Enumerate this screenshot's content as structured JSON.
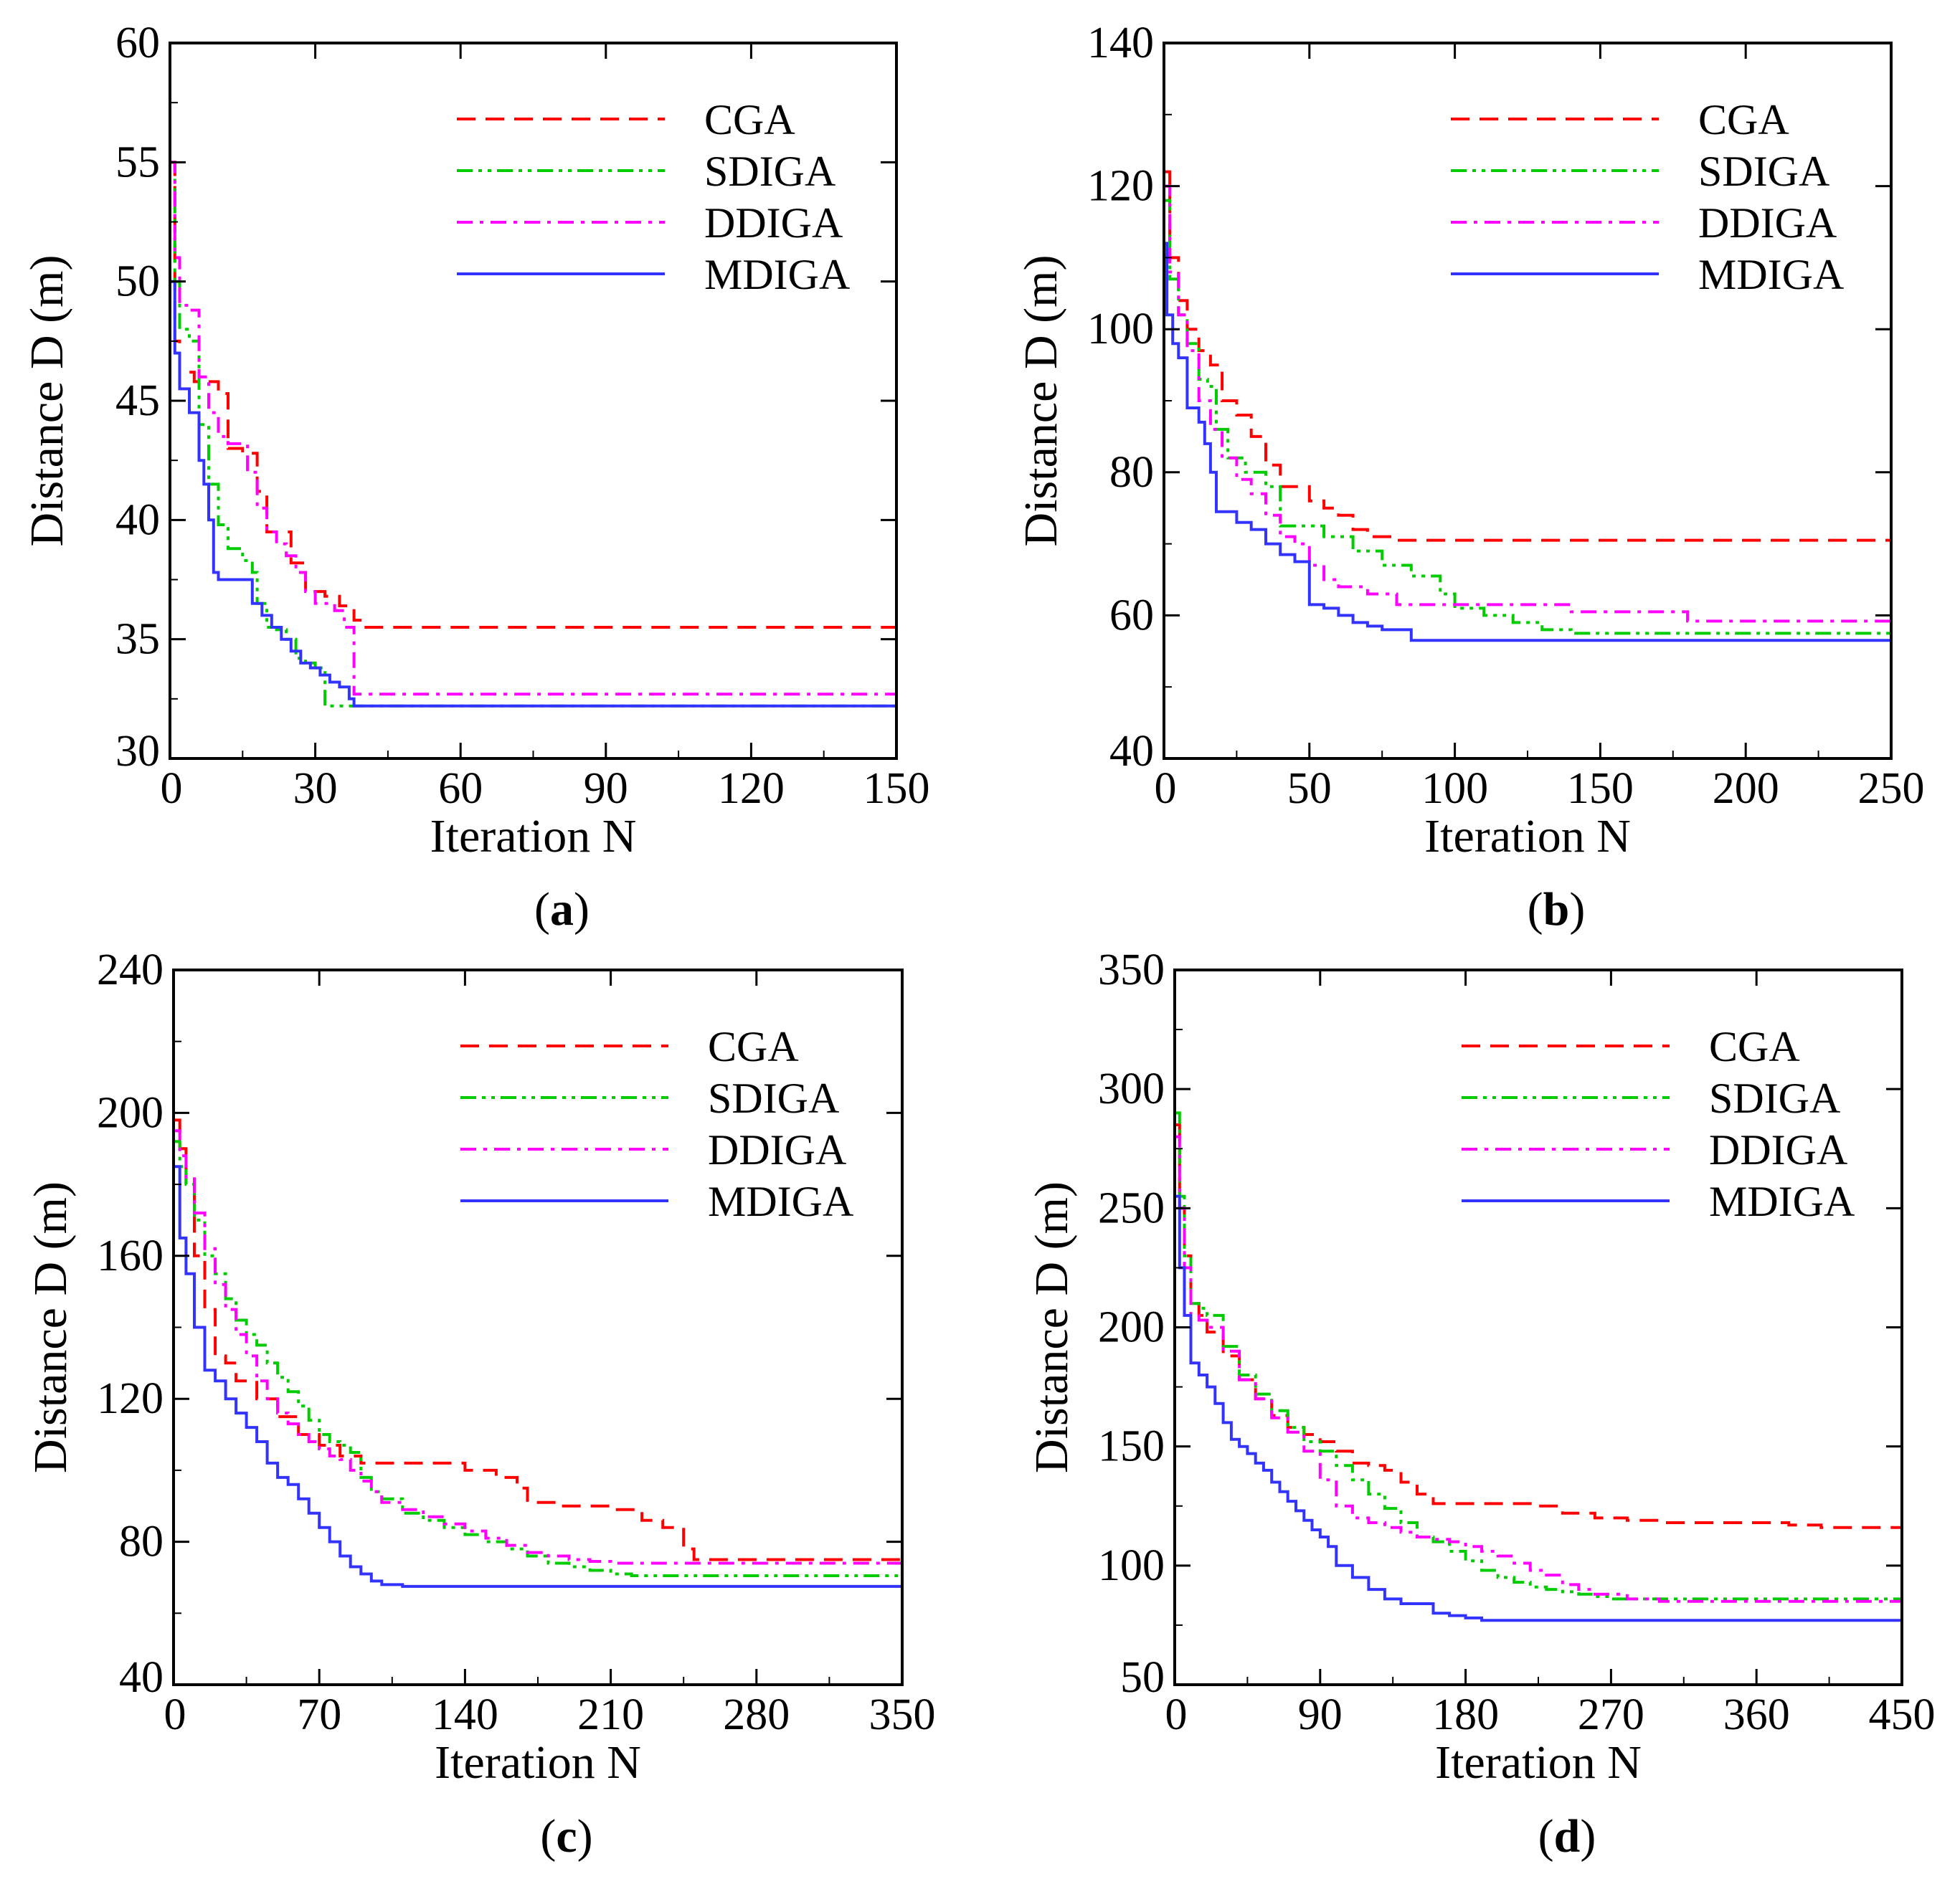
{
  "colors": {
    "CGA": "#ff0000",
    "SDIGA": "#00cc00",
    "DDIGA": "#ff00ff",
    "MDIGA": "#3333ff"
  },
  "chart_data": [
    {
      "id": "a",
      "type": "line",
      "panel_label": "a",
      "xlabel": "Iteration N",
      "ylabel": "Distance D (m)",
      "xlim": [
        0,
        150
      ],
      "ylim": [
        30,
        60
      ],
      "xticks": [
        0,
        30,
        60,
        90,
        120,
        150
      ],
      "yticks": [
        30,
        35,
        40,
        45,
        50,
        55,
        60
      ],
      "legend_position": "top-right",
      "series": [
        {
          "name": "CGA",
          "style": "dashed",
          "step": true,
          "x": [
            0,
            1,
            2,
            5,
            10,
            12,
            15,
            18,
            20,
            25,
            28,
            32,
            35,
            38,
            40,
            150
          ],
          "y": [
            55,
            47.5,
            46.2,
            45.8,
            45.3,
            43,
            42.8,
            41.2,
            39.5,
            38.2,
            37,
            36.8,
            36.4,
            35.8,
            35.5,
            35.5
          ]
        },
        {
          "name": "SDIGA",
          "style": "dashdotdot",
          "step": true,
          "x": [
            0,
            1,
            2,
            4,
            6,
            8,
            10,
            12,
            15,
            17,
            18,
            20,
            22,
            24,
            26,
            28,
            30,
            32,
            34,
            36,
            38,
            150
          ],
          "y": [
            55,
            50,
            48,
            47.5,
            44,
            41.5,
            39.8,
            38.8,
            38.3,
            37.8,
            36.5,
            35.5,
            35.4,
            35,
            34.2,
            34,
            33.8,
            32.2,
            32.2,
            32.2,
            32.2,
            32.2
          ]
        },
        {
          "name": "DDIGA",
          "style": "dashdot",
          "step": true,
          "x": [
            0,
            1,
            2,
            4,
            6,
            8,
            10,
            12,
            16,
            18,
            20,
            22,
            24,
            26,
            28,
            30,
            34,
            36,
            38,
            150
          ],
          "y": [
            55,
            51,
            49,
            48.8,
            46,
            44.5,
            43.5,
            43.2,
            42,
            40.5,
            39.5,
            39,
            38.5,
            37.8,
            37,
            36.5,
            36.2,
            35.5,
            32.7,
            32.7
          ]
        },
        {
          "name": "MDIGA",
          "style": "solid",
          "step": true,
          "x": [
            0,
            1,
            2,
            4,
            6,
            7,
            8,
            9,
            10,
            15,
            17,
            19,
            21,
            23,
            25,
            27,
            29,
            31,
            33,
            35,
            37,
            38,
            150
          ],
          "y": [
            50,
            47,
            45.5,
            44.5,
            42.5,
            41.5,
            40,
            37.8,
            37.5,
            37.5,
            36.5,
            36,
            35.5,
            35,
            34.5,
            34,
            33.8,
            33.5,
            33.2,
            33,
            32.5,
            32.2,
            32.2
          ]
        }
      ]
    },
    {
      "id": "b",
      "type": "line",
      "panel_label": "b",
      "xlabel": "Iteration N",
      "ylabel": "Distance D (m)",
      "xlim": [
        0,
        250
      ],
      "ylim": [
        40,
        140
      ],
      "xticks": [
        0,
        50,
        100,
        150,
        200,
        250
      ],
      "yticks": [
        40,
        60,
        80,
        100,
        120,
        140
      ],
      "legend_position": "top-right",
      "series": [
        {
          "name": "CGA",
          "style": "dashed",
          "step": true,
          "x": [
            0,
            2,
            5,
            8,
            12,
            16,
            20,
            25,
            30,
            35,
            40,
            50,
            55,
            60,
            65,
            70,
            80,
            250
          ],
          "y": [
            122,
            110,
            104,
            100,
            97,
            95,
            90,
            88,
            85,
            81,
            78,
            76,
            75,
            74,
            72,
            71,
            70.5,
            70.5
          ]
        },
        {
          "name": "SDIGA",
          "style": "dashdotdot",
          "step": true,
          "x": [
            0,
            2,
            5,
            8,
            12,
            15,
            18,
            22,
            28,
            35,
            40,
            55,
            65,
            75,
            85,
            95,
            100,
            110,
            120,
            130,
            140,
            250
          ],
          "y": [
            118,
            107,
            102,
            98,
            93,
            92,
            86,
            82,
            80,
            78,
            72.5,
            71,
            69,
            67,
            65.5,
            63,
            61,
            60,
            59,
            58,
            57.5,
            57.5
          ]
        },
        {
          "name": "DDIGA",
          "style": "dashdot",
          "step": true,
          "x": [
            0,
            2,
            5,
            8,
            12,
            16,
            20,
            25,
            30,
            35,
            40,
            45,
            50,
            55,
            60,
            70,
            80,
            100,
            140,
            150,
            180,
            250
          ],
          "y": [
            120,
            108,
            102,
            97,
            90,
            86,
            82,
            79,
            77,
            74,
            71,
            70,
            67,
            65,
            64,
            63,
            61.5,
            61.5,
            60.5,
            60.5,
            59.2,
            59.2
          ]
        },
        {
          "name": "MDIGA",
          "style": "solid",
          "step": true,
          "x": [
            0,
            1,
            3,
            5,
            8,
            12,
            14,
            16,
            18,
            25,
            30,
            35,
            40,
            45,
            50,
            55,
            60,
            65,
            70,
            75,
            80,
            85,
            250
          ],
          "y": [
            112,
            102,
            98,
            96,
            89,
            87,
            84,
            80,
            74.5,
            73,
            72,
            70,
            68.5,
            67.5,
            61.5,
            61,
            60,
            59,
            58.5,
            58,
            58,
            56.5,
            56.5
          ]
        }
      ]
    },
    {
      "id": "c",
      "type": "line",
      "panel_label": "c",
      "xlabel": "Iteration N",
      "ylabel": "Distance D (m)",
      "xlim": [
        0,
        350
      ],
      "ylim": [
        40,
        240
      ],
      "xticks": [
        0,
        70,
        140,
        210,
        280,
        350
      ],
      "yticks": [
        40,
        80,
        120,
        160,
        200,
        240
      ],
      "legend_position": "top-right",
      "series": [
        {
          "name": "CGA",
          "style": "dashed",
          "step": true,
          "x": [
            0,
            3,
            6,
            10,
            15,
            20,
            25,
            30,
            40,
            50,
            60,
            70,
            80,
            90,
            100,
            140,
            155,
            165,
            170,
            185,
            210,
            225,
            235,
            245,
            250,
            350
          ],
          "y": [
            198,
            190,
            180,
            160,
            145,
            132,
            130,
            125,
            120,
            115,
            110,
            107,
            104,
            102,
            102,
            100,
            98,
            95,
            91,
            90,
            89,
            86,
            84,
            78,
            75,
            75
          ]
        },
        {
          "name": "SDIGA",
          "style": "dashdotdot",
          "step": true,
          "x": [
            0,
            3,
            6,
            10,
            15,
            20,
            25,
            30,
            35,
            40,
            45,
            50,
            55,
            60,
            65,
            70,
            75,
            80,
            85,
            90,
            95,
            100,
            110,
            120,
            130,
            140,
            150,
            160,
            170,
            180,
            190,
            200,
            210,
            220,
            350
          ],
          "y": [
            192,
            185,
            180,
            170,
            160,
            155,
            148,
            142,
            138,
            135,
            130,
            126,
            122,
            118,
            114,
            110,
            108,
            107,
            105,
            98,
            94,
            92,
            88,
            86,
            84,
            82,
            80,
            78,
            76,
            74,
            73,
            72,
            71,
            70.5,
            70.5
          ]
        },
        {
          "name": "DDIGA",
          "style": "dashdot",
          "step": true,
          "x": [
            0,
            3,
            6,
            10,
            15,
            20,
            25,
            30,
            35,
            40,
            45,
            50,
            55,
            60,
            65,
            70,
            75,
            80,
            85,
            90,
            95,
            100,
            110,
            120,
            130,
            140,
            150,
            160,
            170,
            180,
            190,
            200,
            210,
            350
          ],
          "y": [
            195,
            188,
            182,
            172,
            162,
            152,
            145,
            138,
            132,
            125,
            120,
            116,
            113,
            110,
            108,
            106,
            104,
            103,
            100,
            97,
            94,
            91,
            89,
            87,
            85,
            83,
            81,
            79,
            77,
            76,
            75,
            74.5,
            74,
            74
          ]
        },
        {
          "name": "MDIGA",
          "style": "solid",
          "step": true,
          "x": [
            0,
            3,
            6,
            10,
            15,
            20,
            25,
            30,
            35,
            40,
            45,
            50,
            55,
            60,
            65,
            70,
            75,
            80,
            85,
            90,
            95,
            100,
            110,
            350
          ],
          "y": [
            185,
            165,
            155,
            140,
            128,
            125,
            120,
            116,
            112,
            108,
            102,
            98,
            96,
            92,
            88,
            84,
            80,
            76,
            73,
            71,
            69,
            68,
            67.5,
            67.5
          ]
        }
      ]
    },
    {
      "id": "d",
      "type": "line",
      "panel_label": "d",
      "xlabel": "Iteration N",
      "ylabel": "Distance D (m)",
      "xlim": [
        0,
        450
      ],
      "ylim": [
        50,
        350
      ],
      "xticks": [
        0,
        90,
        180,
        270,
        360,
        450
      ],
      "yticks": [
        50,
        100,
        150,
        200,
        250,
        300,
        350
      ],
      "legend_position": "top-right",
      "series": [
        {
          "name": "CGA",
          "style": "dashed",
          "step": true,
          "x": [
            0,
            3,
            6,
            10,
            15,
            20,
            30,
            40,
            50,
            60,
            70,
            80,
            90,
            100,
            110,
            120,
            130,
            140,
            150,
            160,
            200,
            220,
            240,
            260,
            280,
            300,
            340,
            370,
            380,
            400,
            450
          ],
          "y": [
            285,
            250,
            230,
            210,
            205,
            198,
            188,
            178,
            170,
            163,
            158,
            155,
            152,
            148,
            143,
            142,
            140,
            135,
            130,
            126,
            126,
            125,
            122,
            120,
            119,
            118,
            118,
            118,
            117,
            116,
            116
          ]
        },
        {
          "name": "SDIGA",
          "style": "dashdotdot",
          "step": true,
          "x": [
            0,
            3,
            6,
            10,
            15,
            20,
            30,
            40,
            50,
            60,
            70,
            80,
            90,
            100,
            110,
            120,
            130,
            140,
            150,
            160,
            170,
            180,
            190,
            200,
            210,
            220,
            230,
            240,
            250,
            260,
            270,
            450
          ],
          "y": [
            290,
            255,
            230,
            210,
            208,
            205,
            192,
            180,
            172,
            165,
            158,
            152,
            148,
            142,
            136,
            130,
            124,
            118,
            112,
            110,
            106,
            102,
            98,
            95,
            93,
            91,
            90,
            89,
            88,
            87,
            86,
            85
          ]
        },
        {
          "name": "DDIGA",
          "style": "dashdot",
          "step": true,
          "x": [
            0,
            3,
            6,
            10,
            15,
            20,
            30,
            40,
            50,
            60,
            70,
            80,
            90,
            100,
            110,
            120,
            130,
            140,
            150,
            160,
            170,
            180,
            190,
            200,
            210,
            220,
            230,
            240,
            250,
            260,
            280,
            300,
            450
          ],
          "y": [
            280,
            250,
            225,
            205,
            203,
            200,
            190,
            178,
            170,
            162,
            156,
            148,
            136,
            125,
            120,
            118,
            116,
            114,
            112,
            111,
            110,
            108,
            106,
            104,
            101,
            98,
            96,
            92,
            90,
            88,
            86,
            85,
            84
          ]
        },
        {
          "name": "MDIGA",
          "style": "solid",
          "step": true,
          "x": [
            0,
            3,
            6,
            10,
            15,
            20,
            25,
            30,
            35,
            40,
            45,
            50,
            55,
            60,
            65,
            70,
            75,
            80,
            85,
            90,
            95,
            100,
            110,
            120,
            130,
            140,
            150,
            160,
            170,
            180,
            190,
            450
          ],
          "y": [
            255,
            225,
            205,
            185,
            180,
            175,
            168,
            160,
            153,
            150,
            147,
            143,
            140,
            135,
            131,
            127,
            123,
            119,
            115,
            112,
            108,
            100,
            95,
            90,
            86,
            84,
            84,
            80,
            79,
            78,
            77,
            77
          ]
        }
      ]
    }
  ]
}
